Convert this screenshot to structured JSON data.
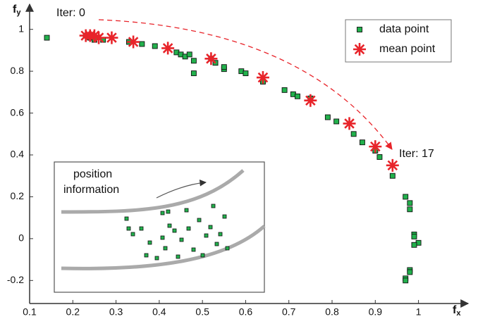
{
  "chart_data": {
    "type": "scatter",
    "xlabel": [
      "f",
      "x"
    ],
    "ylabel": [
      "f",
      "y"
    ],
    "annotations": [
      "Iter: 0",
      "Iter: 17"
    ],
    "inset_text": [
      "position",
      "information"
    ],
    "xlim": [
      0.1,
      1.11
    ],
    "ylim": [
      -0.31,
      1.11
    ],
    "xticks": [
      0.1,
      0.2,
      0.3,
      0.4,
      0.5,
      0.6,
      0.7,
      0.8,
      0.9,
      1
    ],
    "yticks": [
      -0.2,
      0,
      0.2,
      0.4,
      0.6,
      0.8,
      1
    ],
    "series": [
      {
        "name": "data point",
        "color": "#22b14c",
        "marker": "square",
        "x": [
          0.14,
          0.23,
          0.24,
          0.25,
          0.27,
          0.33,
          0.36,
          0.39,
          0.44,
          0.45,
          0.46,
          0.47,
          0.48,
          0.48,
          0.52,
          0.53,
          0.55,
          0.55,
          0.59,
          0.6,
          0.64,
          0.69,
          0.71,
          0.72,
          0.75,
          0.79,
          0.81,
          0.85,
          0.87,
          0.9,
          0.91,
          0.94,
          0.97,
          0.98,
          0.98,
          0.99,
          0.99,
          1.0,
          0.99,
          0.98,
          0.98,
          0.97,
          0.97
        ],
        "y": [
          0.96,
          0.97,
          0.96,
          0.95,
          0.95,
          0.94,
          0.93,
          0.92,
          0.89,
          0.88,
          0.87,
          0.88,
          0.85,
          0.79,
          0.86,
          0.84,
          0.81,
          0.82,
          0.8,
          0.79,
          0.75,
          0.71,
          0.69,
          0.68,
          0.67,
          0.58,
          0.56,
          0.5,
          0.46,
          0.42,
          0.39,
          0.3,
          0.2,
          0.17,
          0.14,
          0.02,
          0.01,
          -0.02,
          -0.03,
          -0.15,
          -0.16,
          -0.19,
          -0.2
        ]
      },
      {
        "name": "mean point",
        "color": "#e8242a",
        "marker": "star",
        "x": [
          0.23,
          0.24,
          0.25,
          0.26,
          0.29,
          0.34,
          0.42,
          0.52,
          0.64,
          0.75,
          0.84,
          0.9,
          0.94
        ],
        "y": [
          0.97,
          0.97,
          0.97,
          0.96,
          0.96,
          0.94,
          0.91,
          0.86,
          0.77,
          0.66,
          0.55,
          0.44,
          0.35
        ]
      }
    ]
  }
}
